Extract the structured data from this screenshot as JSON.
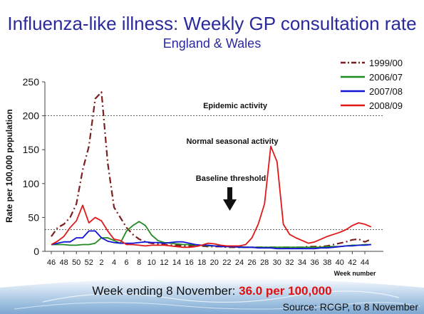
{
  "header": {
    "title": "Influenza-like illness: Weekly GP consultation rate",
    "subtitle": "England & Wales"
  },
  "footer": {
    "week_ending_label": "Week ending 8 November:",
    "week_ending_value": "36.0 per 100,000",
    "source": "Source: RCGP, to 8 November"
  },
  "colors": {
    "s1999": "#7b1f1f",
    "s2006": "#1f8a1f",
    "s2007": "#1414d8",
    "s2008": "#e01818"
  },
  "chart_data": {
    "type": "line",
    "ylabel": "Rate per 100,000 population",
    "xlabel": "Week number",
    "ylim": [
      0,
      250
    ],
    "yticks": [
      0,
      50,
      100,
      150,
      200,
      250
    ],
    "x": [
      46,
      47,
      48,
      49,
      50,
      51,
      52,
      1,
      2,
      3,
      4,
      5,
      6,
      7,
      8,
      9,
      10,
      11,
      12,
      13,
      14,
      15,
      16,
      17,
      18,
      19,
      20,
      21,
      22,
      23,
      24,
      25,
      26,
      27,
      28,
      29,
      30,
      31,
      32,
      33,
      34,
      35,
      36,
      37,
      38,
      39,
      40,
      41,
      42,
      43,
      44,
      45
    ],
    "xtick_labels": [
      "46",
      "48",
      "50",
      "52",
      "2",
      "4",
      "6",
      "8",
      "10",
      "12",
      "14",
      "16",
      "18",
      "20",
      "22",
      "24",
      "26",
      "28",
      "30",
      "32",
      "34",
      "36",
      "38",
      "40",
      "42",
      "44"
    ],
    "legend": "top-right",
    "annotations": [
      {
        "text": "Epidemic activity",
        "level": 200
      },
      {
        "text": "Normal seasonal activity"
      },
      {
        "text": "Baseline threshold",
        "level": 32
      }
    ],
    "series": [
      {
        "name": "1999/00",
        "key": "s1999",
        "style": "dashdot",
        "values": [
          22,
          35,
          40,
          50,
          70,
          120,
          155,
          225,
          235,
          130,
          65,
          50,
          35,
          25,
          18,
          14,
          12,
          11,
          10,
          9,
          9,
          8,
          8,
          8,
          8,
          7,
          7,
          7,
          6,
          6,
          6,
          6,
          6,
          6,
          6,
          6,
          6,
          6,
          6,
          6,
          6,
          7,
          7,
          7,
          8,
          10,
          12,
          14,
          17,
          18,
          14,
          18
        ]
      },
      {
        "name": "2006/07",
        "key": "s2006",
        "style": "solid",
        "values": [
          10,
          10,
          10,
          9,
          9,
          10,
          10,
          12,
          20,
          20,
          16,
          12,
          30,
          38,
          44,
          38,
          24,
          16,
          13,
          12,
          11,
          10,
          10,
          9,
          9,
          8,
          8,
          8,
          7,
          7,
          7,
          6,
          6,
          6,
          6,
          6,
          6,
          6,
          6,
          6,
          6,
          6,
          6,
          6,
          7,
          7,
          7,
          8,
          9,
          9,
          10,
          10
        ]
      },
      {
        "name": "2007/08",
        "key": "s2007",
        "style": "solid",
        "values": [
          10,
          12,
          14,
          14,
          20,
          20,
          30,
          30,
          20,
          15,
          13,
          12,
          12,
          12,
          13,
          14,
          13,
          13,
          12,
          13,
          14,
          14,
          12,
          10,
          9,
          9,
          8,
          7,
          7,
          7,
          6,
          6,
          6,
          5,
          5,
          5,
          4,
          4,
          4,
          4,
          4,
          4,
          4,
          5,
          5,
          6,
          7,
          8,
          8,
          9,
          9,
          10
        ]
      },
      {
        "name": "2008/09",
        "key": "s2008",
        "style": "solid",
        "values": [
          10,
          15,
          22,
          35,
          45,
          68,
          42,
          50,
          45,
          30,
          18,
          16,
          10,
          10,
          9,
          8,
          9,
          9,
          9,
          8,
          7,
          6,
          6,
          7,
          9,
          12,
          11,
          9,
          8,
          8,
          8,
          10,
          20,
          40,
          70,
          155,
          132,
          40,
          25,
          20,
          16,
          12,
          14,
          18,
          22,
          25,
          28,
          32,
          38,
          42,
          40,
          36
        ]
      }
    ]
  }
}
